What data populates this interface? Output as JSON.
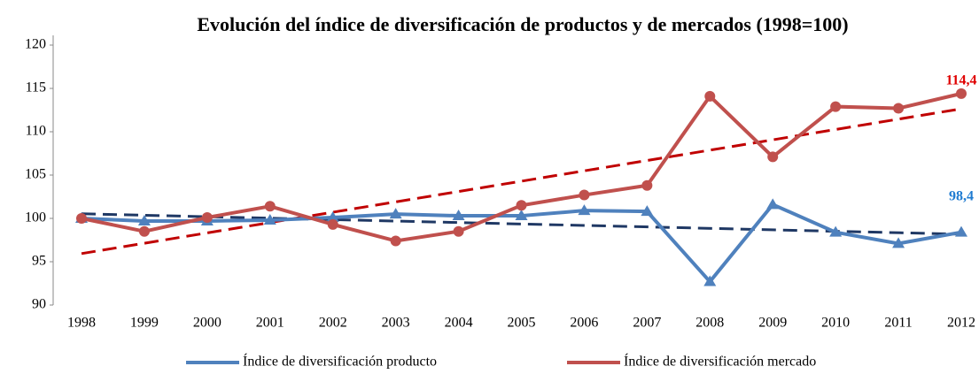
{
  "chart_data": {
    "type": "line",
    "title": "Evolución del índice de diversificación de productos y de mercados (1998=100)",
    "categories": [
      "1998",
      "1999",
      "2000",
      "2001",
      "2002",
      "2003",
      "2004",
      "2005",
      "2006",
      "2007",
      "2008",
      "2009",
      "2010",
      "2011",
      "2012"
    ],
    "series": [
      {
        "name": "Índice de diversificación producto",
        "color": "#4f81bd",
        "trend_color": "#1f3864",
        "marker": "triangle",
        "values": [
          100,
          99.7,
          99.7,
          99.8,
          100.1,
          100.5,
          100.3,
          100.3,
          100.9,
          100.8,
          92.7,
          101.6,
          98.4,
          97.1,
          98.4
        ],
        "value_labels": [
          null,
          null,
          null,
          null,
          null,
          null,
          null,
          null,
          null,
          null,
          null,
          null,
          null,
          null,
          "98,4"
        ]
      },
      {
        "name": "Índice de diversificación mercado",
        "color": "#c0504d",
        "trend_color": "#c00000",
        "marker": "circle",
        "values": [
          100,
          98.5,
          100.1,
          101.4,
          99.3,
          97.4,
          98.5,
          101.5,
          102.7,
          103.8,
          114.1,
          107.1,
          112.9,
          112.7,
          114.4
        ],
        "value_labels": [
          null,
          null,
          null,
          null,
          null,
          null,
          null,
          null,
          null,
          null,
          null,
          null,
          null,
          null,
          "114,4"
        ]
      }
    ],
    "ylim": [
      90,
      120
    ],
    "yticks": [
      90,
      95,
      100,
      105,
      110,
      115,
      120
    ],
    "trendline": true
  }
}
